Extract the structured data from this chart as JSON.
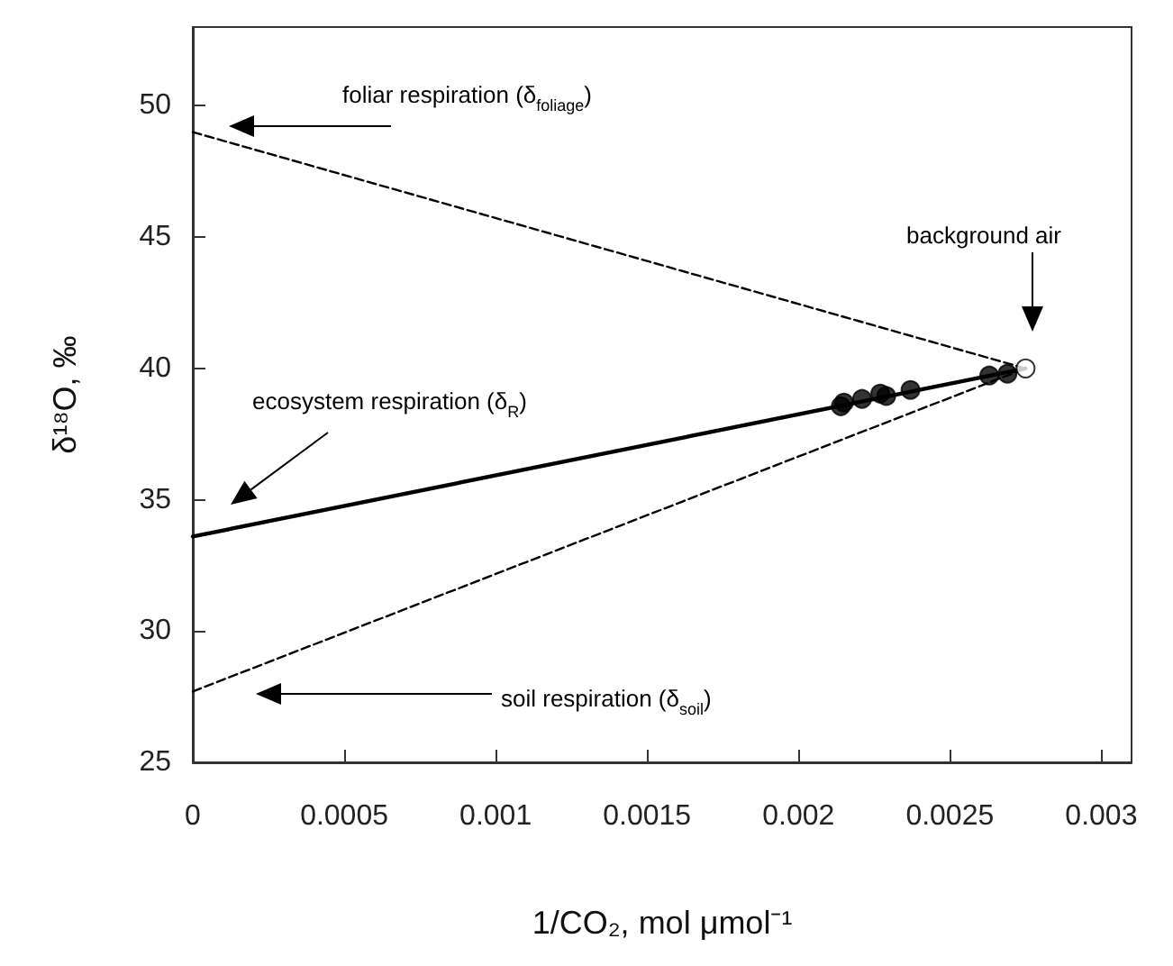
{
  "chart_data": {
    "type": "scatter",
    "xlabel": "1/CO₂, mol μmol⁻¹",
    "ylabel": "δ¹⁸O, ‰",
    "xlim": [
      0,
      0.0031
    ],
    "ylim": [
      25,
      53
    ],
    "xticks": [
      0,
      0.0005,
      0.001,
      0.0015,
      0.002,
      0.0025,
      0.003
    ],
    "yticks": [
      25,
      30,
      35,
      40,
      45,
      50
    ],
    "grid": false,
    "series": [
      {
        "type": "line",
        "color": "#000000",
        "x": [
          0,
          0.00275
        ],
        "values": [
          33.6,
          40.0
        ],
        "line_style": "solid",
        "marker": "none"
      },
      {
        "type": "line",
        "color": "#000000",
        "x": [
          0,
          0.00275
        ],
        "values": [
          49.0,
          40.0
        ],
        "line_style": "dashed",
        "marker": "none"
      },
      {
        "type": "line",
        "color": "#000000",
        "x": [
          0,
          0.00275
        ],
        "values": [
          27.7,
          40.0
        ],
        "line_style": "dashed",
        "marker": "none"
      },
      {
        "color": "#000000",
        "x": [
          0.00214,
          0.00215,
          0.00221,
          0.00227,
          0.00229,
          0.00237,
          0.00263,
          0.00269
        ],
        "values": [
          38.56,
          38.7,
          38.84,
          39.04,
          38.95,
          39.18,
          39.73,
          39.8
        ],
        "marker": "circle"
      },
      {
        "color": "#ffffff",
        "x": [
          0.00275
        ],
        "values": [
          40.0
        ],
        "marker": "circle"
      }
    ],
    "annotations": [
      "foliar respiration (δ$_{foliage}$)",
      "background air",
      "ecosystem respiration (δ$_{R}$)",
      "soil respiration (δ$_{soil}$)"
    ]
  }
}
